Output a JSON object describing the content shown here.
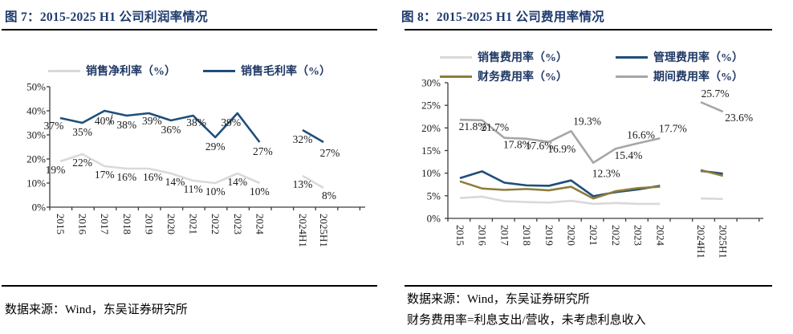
{
  "panels": [
    {
      "figure_label": "图 7：2015-2025 H1 公司利润率情况",
      "source_lines": [
        "数据来源：Wind，东吴证券研究所"
      ]
    },
    {
      "figure_label": "图 8：2015-2025 H1 公司费用率情况",
      "source_lines": [
        "数据来源：Wind，东吴证券研究所",
        "财务费用率=利息支出/营收，未考虑利息收入"
      ]
    }
  ],
  "colors": {
    "title_navy": "#1d3a6e",
    "legend_navy": "#1f3864",
    "line_navy": "#1f4e79",
    "line_light_gray": "#d9d9d9",
    "line_olive": "#8e7d3b",
    "line_mid_gray": "#a6a6a6",
    "axis": "#3c3c3c"
  },
  "chart_data": [
    {
      "type": "line",
      "title": "2015-2025 H1 公司利润率情况",
      "categories": [
        "2015",
        "2016",
        "2017",
        "2018",
        "2019",
        "2020",
        "2021",
        "2022",
        "2023",
        "2024"
      ],
      "h1_categories": [
        "2024H1",
        "2025H1"
      ],
      "xlabel": "",
      "ylabel": "",
      "ylim": [
        0,
        50
      ],
      "ytick_step": 10,
      "ytick_suffix": "%",
      "grid": false,
      "legend_position": "top",
      "series": [
        {
          "name": "销售净利率（%）",
          "color": "#d9d9d9",
          "values": [
            19,
            22,
            17,
            16,
            16,
            14,
            11,
            10,
            14,
            10
          ],
          "h1_values": [
            13,
            8
          ],
          "show_labels": true,
          "label_fmt": "int",
          "label_default": {
            "dx": 0,
            "dy": 15
          },
          "label_overrides": {
            "0": {
              "dx": -6
            },
            "4": {
              "dx": 5
            },
            "5": {
              "dx": 5
            },
            "11": {
              "dx": 7,
              "dy": 14
            }
          }
        },
        {
          "name": "销售毛利率（%）",
          "color": "#1f4e79",
          "values": [
            37,
            35,
            40,
            38,
            39,
            36,
            38,
            29,
            39,
            27
          ],
          "h1_values": [
            32,
            27
          ],
          "show_labels": true,
          "label_fmt": "int",
          "label_default": {
            "dx": 0,
            "dy": 16
          },
          "label_overrides": {
            "0": {
              "dx": -8,
              "dy": 14
            },
            "2": {
              "dy": 17,
              "leader": true
            },
            "4": {
              "dx": 4,
              "dy": 14
            },
            "6": {
              "dx": 4,
              "dy": 13
            },
            "8": {
              "dx": -8
            },
            "9": {
              "dx": 4
            },
            "11": {
              "dx": 8,
              "dy": 18
            }
          }
        }
      ]
    },
    {
      "type": "line",
      "title": "2015-2025 H1 公司费用率情况",
      "categories": [
        "2015",
        "2016",
        "2017",
        "2018",
        "2019",
        "2020",
        "2021",
        "2022",
        "2023",
        "2024"
      ],
      "h1_categories": [
        "2024H1",
        "2025H1"
      ],
      "xlabel": "",
      "ylabel": "",
      "ylim": [
        0,
        30
      ],
      "ytick_step": 5,
      "ytick_suffix": "%",
      "grid": false,
      "legend_position": "top",
      "series": [
        {
          "name": "销售费用率（%）",
          "color": "#d9d9d9",
          "values": [
            4.5,
            4.8,
            3.8,
            3.6,
            3.5,
            3.9,
            3.2,
            3.4,
            3.2,
            3.2
          ],
          "h1_values": [
            4.4,
            4.3
          ],
          "show_labels": false
        },
        {
          "name": "管理费用率（%）",
          "color": "#1f4e79",
          "values": [
            8.9,
            10.4,
            7.9,
            7.3,
            7.2,
            8.4,
            4.9,
            5.8,
            6.4,
            7.2
          ],
          "h1_values": [
            10.5,
            9.9
          ],
          "show_labels": false
        },
        {
          "name": "财务费用率（%）",
          "color": "#8e7d3b",
          "values": [
            8.2,
            6.6,
            6.3,
            6.5,
            6.2,
            7.0,
            4.4,
            6.0,
            6.7,
            7.0
          ],
          "h1_values": [
            10.7,
            9.4
          ],
          "show_labels": false
        },
        {
          "name": "期间费用率（%）",
          "color": "#a6a6a6",
          "values": [
            21.8,
            21.7,
            17.8,
            17.6,
            16.9,
            19.3,
            12.3,
            15.4,
            16.6,
            17.7
          ],
          "h1_values": [
            25.7,
            23.6
          ],
          "show_labels": true,
          "label_fmt": "1dp",
          "label_default": {
            "dx": 16,
            "dy": 13
          },
          "label_overrides": {
            "5": {
              "dx": 20,
              "dy": -8
            },
            "6": {
              "dx": 16,
              "dy": 18
            },
            "8": {
              "dx": 4,
              "dy": -6
            },
            "9": {
              "dx": 16,
              "dy": -8
            },
            "10": {
              "dx": 18,
              "dy": -6
            },
            "11": {
              "dx": 20,
              "dy": 12
            }
          }
        }
      ]
    }
  ]
}
